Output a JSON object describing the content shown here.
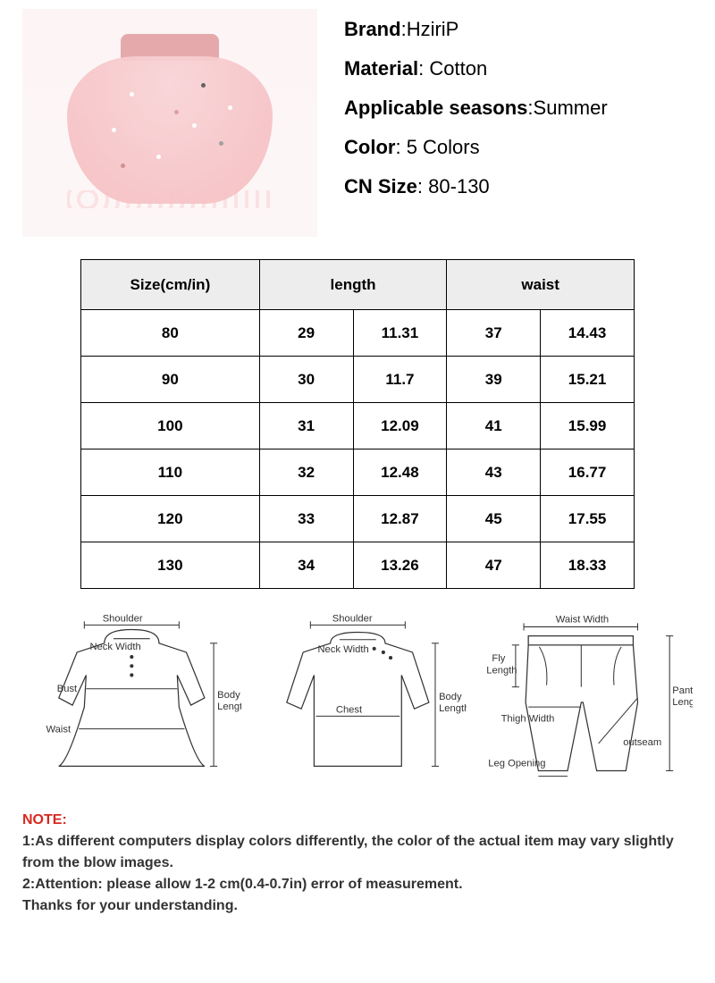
{
  "product": {
    "image_bg": "#fdf5f5",
    "waistband_color": "#e5a9ac",
    "skirt_color": "#f7c8cb"
  },
  "attrs": [
    {
      "label": "Brand",
      "value": "HziriP"
    },
    {
      "label": "Material",
      "value": " Cotton"
    },
    {
      "label": "Applicable seasons",
      "value": "Summer"
    },
    {
      "label": "Color",
      "value": " 5 Colors"
    },
    {
      "label": "CN Size",
      "value": " 80-130"
    }
  ],
  "table": {
    "headers": {
      "size": "Size(cm/in)",
      "length": "length",
      "waist": "waist"
    },
    "rows": [
      {
        "size": "80",
        "len_cm": "29",
        "len_in": "11.31",
        "waist_cm": "37",
        "waist_in": "14.43"
      },
      {
        "size": "90",
        "len_cm": "30",
        "len_in": "11.7",
        "waist_cm": "39",
        "waist_in": "15.21"
      },
      {
        "size": "100",
        "len_cm": "31",
        "len_in": "12.09",
        "waist_cm": "41",
        "waist_in": "15.99"
      },
      {
        "size": "110",
        "len_cm": "32",
        "len_in": "12.48",
        "waist_cm": "43",
        "waist_in": "16.77"
      },
      {
        "size": "120",
        "len_cm": "33",
        "len_in": "12.87",
        "waist_cm": "45",
        "waist_in": "17.55"
      },
      {
        "size": "130",
        "len_cm": "34",
        "len_in": "13.26",
        "waist_cm": "47",
        "waist_in": "18.33"
      }
    ],
    "header_bg": "#ededed",
    "border_color": "#000000",
    "font_size": 17
  },
  "diagrams": {
    "d1": {
      "shoulder": "Shoulder",
      "neck": "Neck Width",
      "bust": "Bust",
      "waist": "Waist",
      "body_len": "Body\nLength"
    },
    "d2": {
      "shoulder": "Shoulder",
      "neck": "Neck Width",
      "chest": "Chest",
      "body_len": "Body\nLength"
    },
    "d3": {
      "waist": "Waist Width",
      "fly": "Fly\nLength",
      "thigh": "Thigh Width",
      "leg": "Leg Opening",
      "outseam": "outseam",
      "pant_len": "Pant\nLength"
    }
  },
  "notes": {
    "title": "NOTE:",
    "line1": "1:As different computers display colors differently, the color of the actual item may vary slightly from the blow images.",
    "line2": "2:Attention: please allow 1-2 cm(0.4-0.7in) error of measurement.",
    "line3": "Thanks for your understanding."
  }
}
